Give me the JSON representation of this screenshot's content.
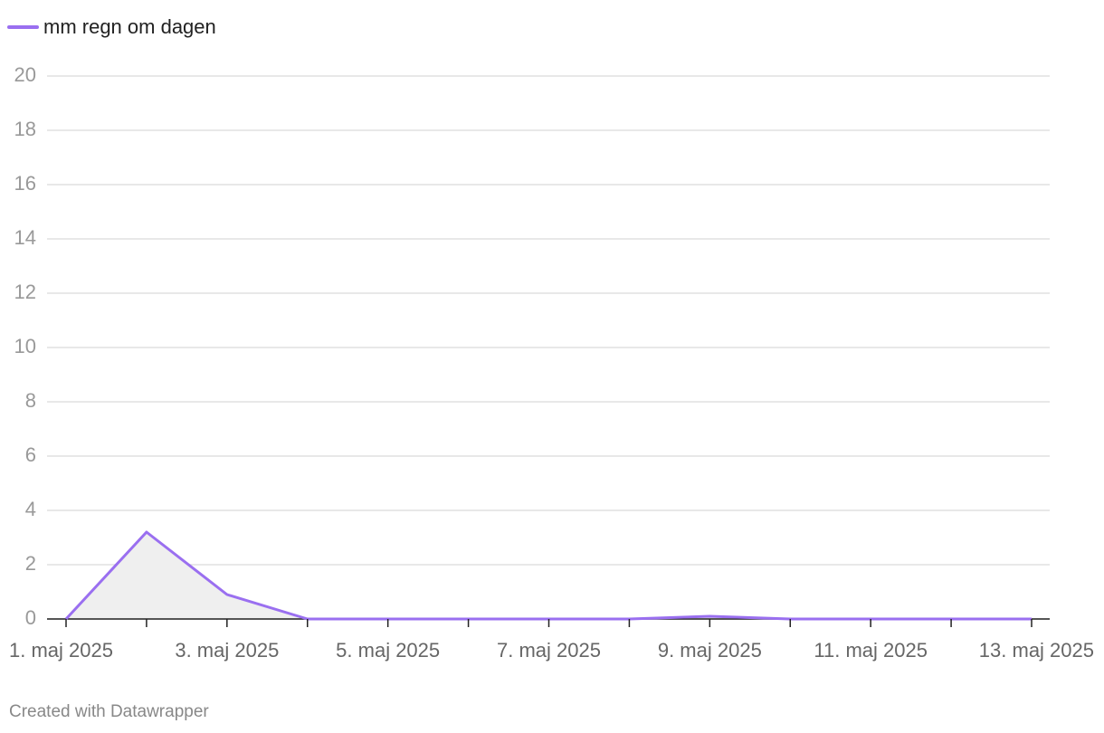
{
  "chart_data": {
    "type": "area",
    "categories": [
      "1. maj 2025",
      null,
      "3. maj 2025",
      null,
      "5. maj 2025",
      null,
      "7. maj 2025",
      null,
      "9. maj 2025",
      null,
      "11. maj 2025",
      null,
      "13. maj 2025"
    ],
    "series": [
      {
        "name": "mm regn om dagen",
        "color": "#9a6ff0",
        "values": [
          0,
          3.2,
          0.9,
          0,
          0,
          0,
          0,
          0,
          0.1,
          0,
          0,
          0,
          0
        ]
      }
    ],
    "area_fill": "#efefef",
    "ylim": [
      0,
      20
    ],
    "yticks": [
      0,
      2,
      4,
      6,
      8,
      10,
      12,
      14,
      16,
      18,
      20
    ],
    "grid": true,
    "footer": "Created with Datawrapper"
  }
}
